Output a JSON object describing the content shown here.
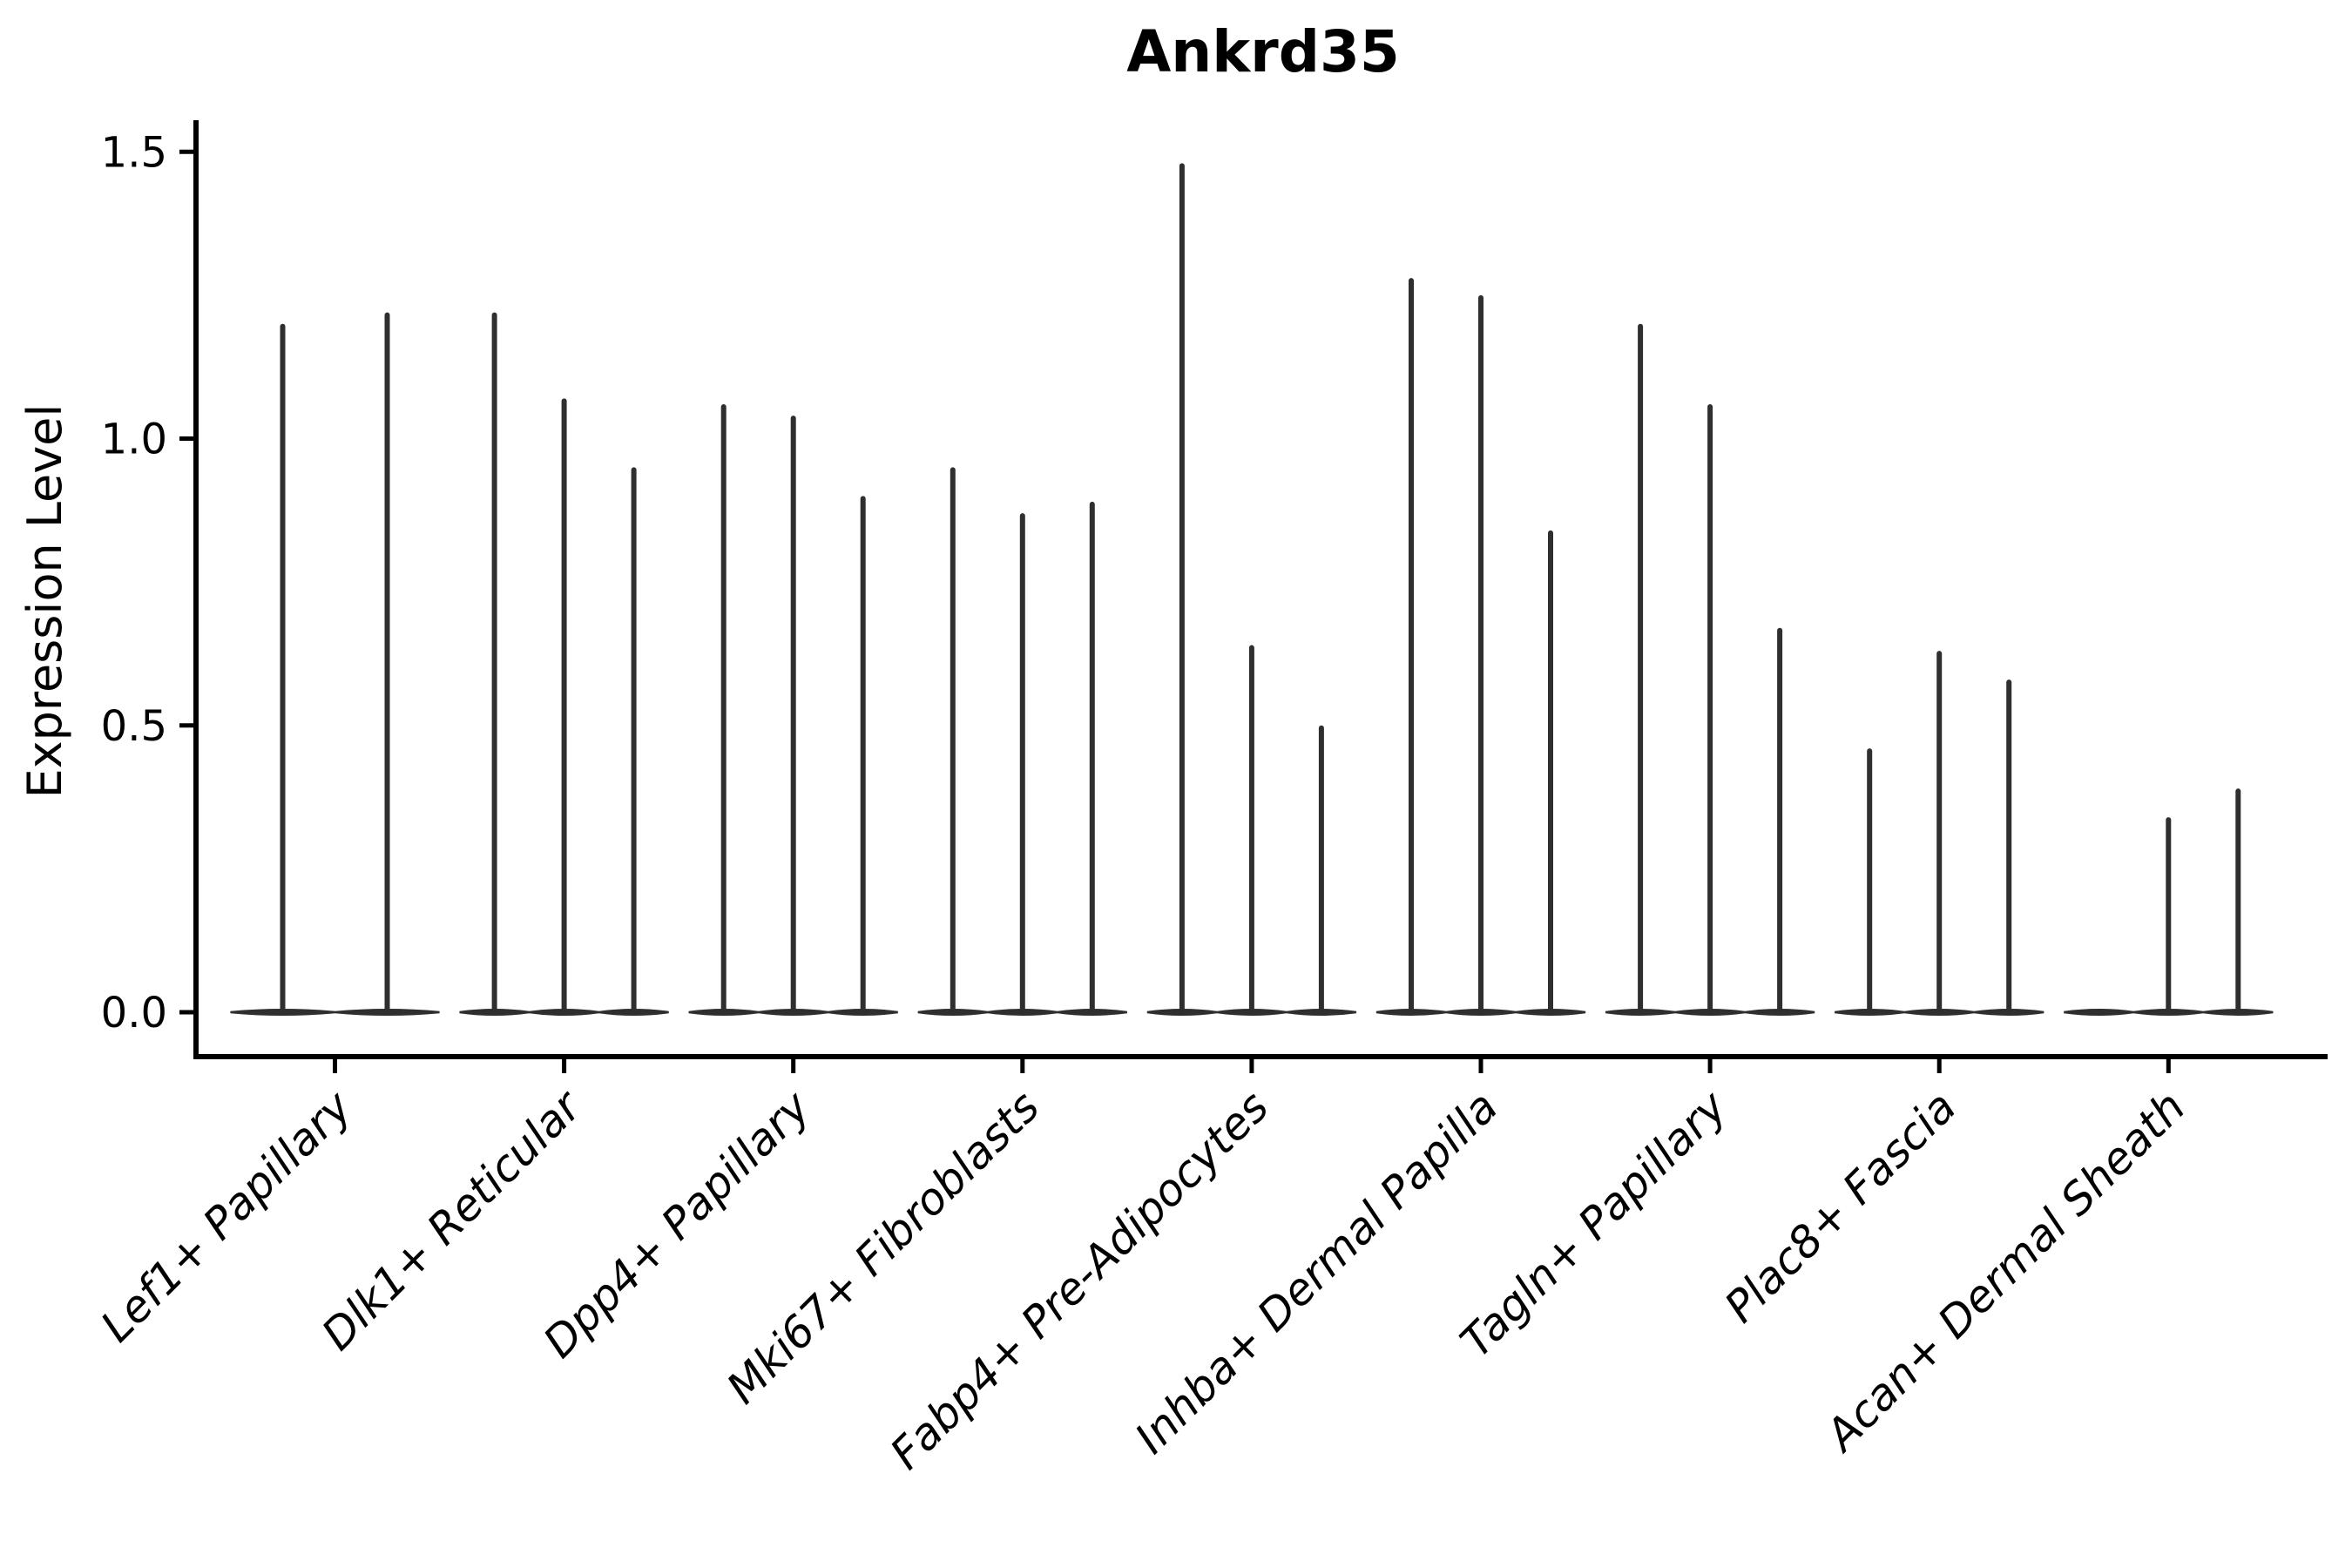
{
  "chart_data": {
    "type": "violin",
    "title": "Ankrd35",
    "ylabel": "Expression Level",
    "xlabel": "",
    "yticks": [
      "0.0",
      "0.5",
      "1.0",
      "1.5"
    ],
    "ylim": [
      0,
      1.55
    ],
    "grid": false,
    "legend": "none",
    "categories": [
      "Lef1+ Papillary",
      "Dlk1+ Reticular",
      "Dpp4+ Papillary",
      "Mki67+ Fibroblasts",
      "Fabp4+ Pre-Adipocytes",
      "Inhba+ Dermal Papilla",
      "Tagln+ Papillary",
      "Plac8+ Fascia",
      "Acan+ Dermal Sheath"
    ],
    "groups": [
      {
        "label": "Lef1+ Papillary",
        "violin_maxima": [
          1.2,
          1.22
        ]
      },
      {
        "label": "Dlk1+ Reticular",
        "violin_maxima": [
          1.22,
          1.07,
          0.95
        ]
      },
      {
        "label": "Dpp4+ Papillary",
        "violin_maxima": [
          1.06,
          1.04,
          0.9
        ]
      },
      {
        "label": "Mki67+ Fibroblasts",
        "violin_maxima": [
          0.95,
          0.87,
          0.89
        ]
      },
      {
        "label": "Fabp4+ Pre-Adipocytes",
        "violin_maxima": [
          1.48,
          0.64,
          0.5
        ]
      },
      {
        "label": "Inhba+ Dermal Papilla",
        "violin_maxima": [
          1.28,
          1.25,
          0.84
        ]
      },
      {
        "label": "Tagln+ Papillary",
        "violin_maxima": [
          1.2,
          1.06,
          0.67
        ]
      },
      {
        "label": "Plac8+ Fascia",
        "violin_maxima": [
          0.46,
          0.63,
          0.58
        ]
      },
      {
        "label": "Acan+ Dermal Sheath",
        "violin_maxima": [
          0.0,
          0.34,
          0.39
        ]
      }
    ],
    "colors": {
      "violin_line": "#2f2f2f",
      "axis": "#000000",
      "text": "#000000",
      "background": "#ffffff"
    }
  }
}
